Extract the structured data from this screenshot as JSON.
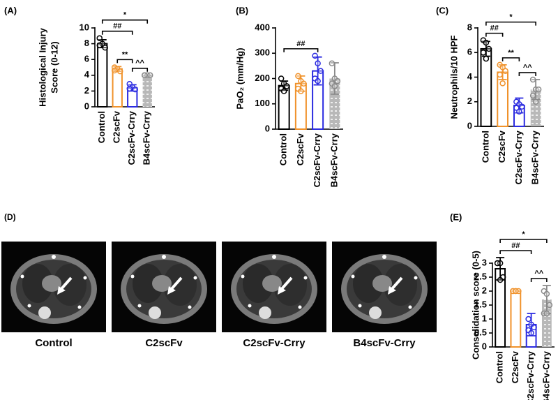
{
  "chart_data": [
    {
      "type": "bar",
      "panel": "(A)",
      "ylabel": [
        "Histological Injury",
        "Score (0-12)"
      ],
      "categories": [
        "Control",
        "C2scFv",
        "C2scFv-Crry",
        "B4scFv-Crry"
      ],
      "values": [
        8,
        4.8,
        2.4,
        4
      ],
      "errors": [
        0.5,
        0.3,
        0.4,
        0
      ],
      "points": [
        [
          8.7,
          8,
          7.5,
          7.8
        ],
        [
          5,
          4.8,
          4.5,
          4.6
        ],
        [
          2.9,
          2.5,
          2.2,
          2.3
        ],
        [
          4,
          4,
          4,
          4
        ]
      ],
      "colors": [
        "#000000",
        "#f0922b",
        "#2a2ae0",
        "#8a8a8a"
      ],
      "hatched": [
        false,
        false,
        false,
        true
      ],
      "ylim": [
        0,
        10
      ],
      "yticks": [
        0,
        2,
        4,
        6,
        8,
        10
      ],
      "annotations": [
        {
          "text": "*",
          "between": [
            "Control",
            "B4scFv-Crry"
          ]
        },
        {
          "text": "##",
          "between": [
            "Control",
            "C2scFv-Crry"
          ]
        },
        {
          "text": "**",
          "between": [
            "C2scFv",
            "C2scFv-Crry"
          ]
        },
        {
          "text": "^^",
          "between": [
            "C2scFv-Crry",
            "B4scFv-Crry"
          ]
        }
      ]
    },
    {
      "type": "bar",
      "panel": "(B)",
      "ylabel": "PaO₂ (mm/Hg)",
      "categories": [
        "Control",
        "C2scFv",
        "C2scFv-Crry",
        "B4scFv-Crry"
      ],
      "values": [
        172,
        180,
        230,
        200
      ],
      "errors": [
        18,
        30,
        55,
        62
      ],
      "points": [
        [
          200,
          180,
          170,
          160,
          150
        ],
        [
          210,
          190,
          180,
          160,
          150
        ],
        [
          290,
          260,
          230,
          200,
          190
        ],
        [
          260,
          200,
          190,
          180,
          170
        ]
      ],
      "colors": [
        "#000000",
        "#f0922b",
        "#2a2ae0",
        "#8a8a8a"
      ],
      "hatched": [
        false,
        false,
        false,
        true
      ],
      "ylim": [
        0,
        400
      ],
      "yticks": [
        0,
        100,
        200,
        300,
        400
      ],
      "annotations": [
        {
          "text": "##",
          "between": [
            "Control",
            "C2scFv-Crry"
          ]
        }
      ]
    },
    {
      "type": "bar",
      "panel": "(C)",
      "ylabel": "Neutrophils/10 HPF",
      "categories": [
        "Control",
        "C2scFv",
        "C2scFv-Crry",
        "B4scFv-Crry"
      ],
      "values": [
        6.3,
        4.4,
        1.7,
        3.0
      ],
      "errors": [
        0.6,
        0.6,
        0.6,
        0.8
      ],
      "points": [
        [
          7,
          6.8,
          6.3,
          6,
          5.5
        ],
        [
          5,
          4.8,
          4.5,
          4.2,
          3.5
        ],
        [
          2,
          1.8,
          1.6,
          1.5,
          1.2
        ],
        [
          3.8,
          3,
          3,
          2.5,
          2
        ]
      ],
      "colors": [
        "#000000",
        "#f0922b",
        "#2a2ae0",
        "#8a8a8a"
      ],
      "hatched": [
        false,
        false,
        false,
        true
      ],
      "ylim": [
        0,
        8
      ],
      "yticks": [
        0,
        2,
        4,
        6,
        8
      ],
      "annotations": [
        {
          "text": "*",
          "between": [
            "Control",
            "B4scFv-Crry"
          ]
        },
        {
          "text": "##",
          "between": [
            "Control",
            "C2scFv"
          ]
        },
        {
          "text": "**",
          "between": [
            "C2scFv",
            "C2scFv-Crry"
          ]
        },
        {
          "text": "^^",
          "between": [
            "C2scFv-Crry",
            "B4scFv-Crry"
          ]
        }
      ]
    },
    {
      "type": "bar",
      "panel": "(E)",
      "ylabel": "Consolidation score (0-5)",
      "categories": [
        "Control",
        "C2scFv",
        "C2scFv-Crry",
        "B4scFv-Crry"
      ],
      "values": [
        2.8,
        2,
        0.8,
        1.7
      ],
      "errors": [
        0.4,
        0,
        0.4,
        0.5
      ],
      "points": [
        [
          3,
          3,
          2.5,
          3,
          2.4
        ],
        [
          2,
          2,
          2,
          2,
          2
        ],
        [
          1,
          0.8,
          0.7,
          0.6,
          0.5
        ],
        [
          2,
          1.9,
          1.5,
          1.2,
          1.2
        ]
      ],
      "colors": [
        "#000000",
        "#f0922b",
        "#2a2ae0",
        "#8a8a8a"
      ],
      "hatched": [
        false,
        false,
        false,
        true
      ],
      "ylim": [
        0,
        3
      ],
      "yticks": [
        0,
        0.5,
        1,
        1.5,
        2,
        2.5,
        3
      ],
      "annotations": [
        {
          "text": "*",
          "between": [
            "Control",
            "B4scFv-Crry"
          ]
        },
        {
          "text": "##",
          "between": [
            "Control",
            "C2scFv-Crry"
          ]
        },
        {
          "text": "^^",
          "between": [
            "C2scFv-Crry",
            "B4scFv-Crry"
          ]
        }
      ]
    }
  ],
  "figure_d": {
    "panel": "(D)",
    "captions": [
      "Control",
      "C2scFv",
      "C2scFv-Crry",
      "B4scFv-Crry"
    ]
  }
}
